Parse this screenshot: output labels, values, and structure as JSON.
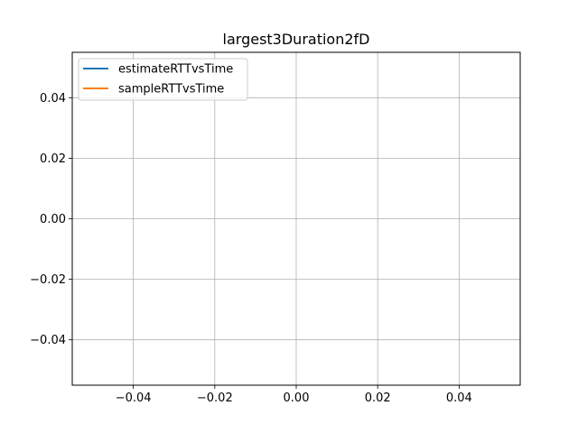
{
  "chart_data": {
    "type": "line",
    "title": "largest3Duration2fD",
    "xlabel": "",
    "ylabel": "",
    "xlim": [
      -0.055,
      0.055
    ],
    "ylim": [
      -0.055,
      0.055
    ],
    "xticks": [
      -0.04,
      -0.02,
      0.0,
      0.02,
      0.04
    ],
    "yticks": [
      -0.04,
      -0.02,
      0.0,
      0.02,
      0.04
    ],
    "xtick_labels": [
      "−0.04",
      "−0.02",
      "0.00",
      "0.02",
      "0.04"
    ],
    "ytick_labels": [
      "−0.04",
      "−0.02",
      "0.00",
      "0.02",
      "0.04"
    ],
    "grid": true,
    "legend_position": "top-left",
    "series": [
      {
        "name": "estimateRTTvsTime",
        "color": "#1f77b4",
        "x": [],
        "y": []
      },
      {
        "name": "sampleRTTvsTime",
        "color": "#ff7f0e",
        "x": [],
        "y": []
      }
    ]
  }
}
